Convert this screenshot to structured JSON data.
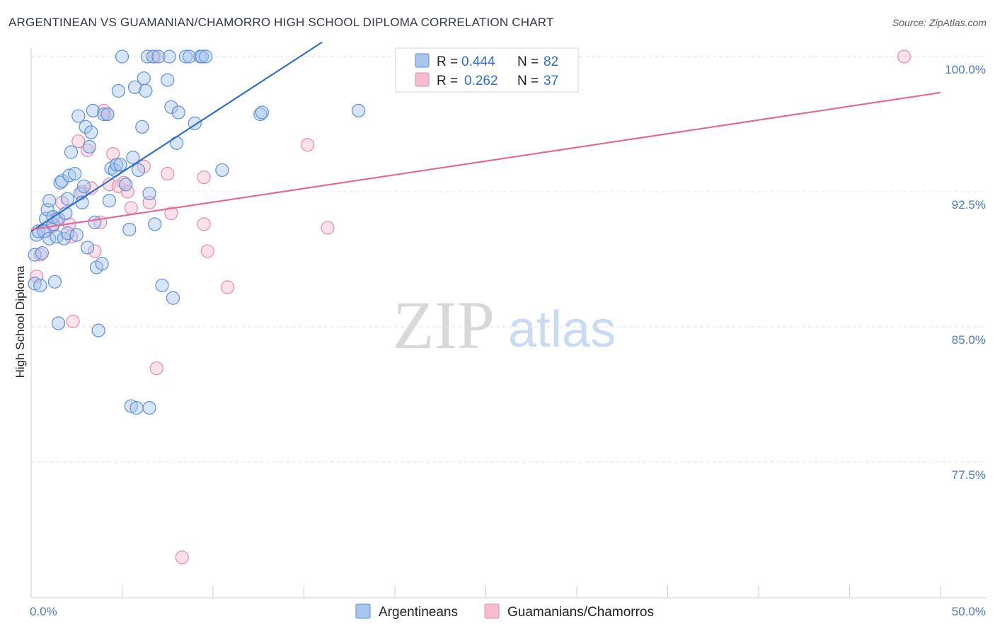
{
  "title": "ARGENTINEAN VS GUAMANIAN/CHAMORRO HIGH SCHOOL DIPLOMA CORRELATION CHART",
  "source": "Source: ZipAtlas.com",
  "watermark": {
    "zip": "ZIP",
    "atlas": "atlas"
  },
  "colors": {
    "blue_fill": "#a9c6ef",
    "blue_stroke": "#5b8fd6",
    "blue_line": "#2f6fcc",
    "pink_fill": "#f6bcd0",
    "pink_stroke": "#e58aaa",
    "pink_line": "#e06a96",
    "tick_text": "#4a78c8",
    "grid": "#dde0e5"
  },
  "stats_legend": {
    "rows": [
      {
        "r_label": "R =",
        "r_value": "0.444",
        "n_label": "N =",
        "n_value": "82"
      },
      {
        "r_label": "R =",
        "r_value": "0.262",
        "n_label": "N =",
        "n_value": "37"
      }
    ]
  },
  "chart_data": {
    "type": "scatter",
    "title": "ARGENTINEAN VS GUAMANIAN/CHAMORRO HIGH SCHOOL DIPLOMA CORRELATION CHART",
    "xlabel": "",
    "ylabel": "High School Diploma",
    "xlim": [
      0,
      50
    ],
    "ylim": [
      70.8,
      101.0
    ],
    "x_tick_labels": [
      "0.0%",
      "50.0%"
    ],
    "y_ticks": [
      100.0,
      92.5,
      85.0,
      77.5
    ],
    "y_tick_labels": [
      "100.0%",
      "92.5%",
      "85.0%",
      "77.5%"
    ],
    "grid": true,
    "legend_position": "bottom",
    "series": [
      {
        "name": "Argentineans",
        "color": "#a9c6ef",
        "trend": {
          "x": [
            0.0,
            16.0
          ],
          "y": [
            90.3,
            100.8
          ]
        },
        "points": [
          [
            0.2,
            87.4
          ],
          [
            0.2,
            89.0
          ],
          [
            0.3,
            90.1
          ],
          [
            0.4,
            90.3
          ],
          [
            0.5,
            87.3
          ],
          [
            0.6,
            89.1
          ],
          [
            0.7,
            90.3
          ],
          [
            0.8,
            91.0
          ],
          [
            0.9,
            91.5
          ],
          [
            1.0,
            89.9
          ],
          [
            1.0,
            92.0
          ],
          [
            1.2,
            90.7
          ],
          [
            1.2,
            91.1
          ],
          [
            1.3,
            87.5
          ],
          [
            1.4,
            90.0
          ],
          [
            1.5,
            91.0
          ],
          [
            1.5,
            85.2
          ],
          [
            1.6,
            93.0
          ],
          [
            1.7,
            93.1
          ],
          [
            1.8,
            89.9
          ],
          [
            1.9,
            91.3
          ],
          [
            2.0,
            90.2
          ],
          [
            2.0,
            92.1
          ],
          [
            2.1,
            93.4
          ],
          [
            2.2,
            94.7
          ],
          [
            2.4,
            93.5
          ],
          [
            2.5,
            90.1
          ],
          [
            2.6,
            96.7
          ],
          [
            2.7,
            92.4
          ],
          [
            2.8,
            91.9
          ],
          [
            2.9,
            92.8
          ],
          [
            3.0,
            96.1
          ],
          [
            3.1,
            89.4
          ],
          [
            3.2,
            95.0
          ],
          [
            3.3,
            95.8
          ],
          [
            3.4,
            97.0
          ],
          [
            3.5,
            90.8
          ],
          [
            3.6,
            88.3
          ],
          [
            3.7,
            84.8
          ],
          [
            3.9,
            88.5
          ],
          [
            4.0,
            96.8
          ],
          [
            4.2,
            96.8
          ],
          [
            4.3,
            92.0
          ],
          [
            4.4,
            93.8
          ],
          [
            4.6,
            93.7
          ],
          [
            4.7,
            94.0
          ],
          [
            4.8,
            98.1
          ],
          [
            4.9,
            94.0
          ],
          [
            5.0,
            100.0
          ],
          [
            5.2,
            92.9
          ],
          [
            5.4,
            90.4
          ],
          [
            5.5,
            80.6
          ],
          [
            5.6,
            94.4
          ],
          [
            5.7,
            98.3
          ],
          [
            5.8,
            80.5
          ],
          [
            5.9,
            93.7
          ],
          [
            6.1,
            96.1
          ],
          [
            6.2,
            98.8
          ],
          [
            6.3,
            98.1
          ],
          [
            6.4,
            100.0
          ],
          [
            6.5,
            92.4
          ],
          [
            6.5,
            80.5
          ],
          [
            6.7,
            100.0
          ],
          [
            6.8,
            90.7
          ],
          [
            7.0,
            100.0
          ],
          [
            7.2,
            87.3
          ],
          [
            7.5,
            98.7
          ],
          [
            7.6,
            100.0
          ],
          [
            7.7,
            97.2
          ],
          [
            7.8,
            86.6
          ],
          [
            8.0,
            95.2
          ],
          [
            8.1,
            96.9
          ],
          [
            8.5,
            100.0
          ],
          [
            8.7,
            100.0
          ],
          [
            9.3,
            100.0
          ],
          [
            9.0,
            96.3
          ],
          [
            9.4,
            100.0
          ],
          [
            9.6,
            100.0
          ],
          [
            10.5,
            93.7
          ],
          [
            12.6,
            96.8
          ],
          [
            12.7,
            96.9
          ],
          [
            18.0,
            97.0
          ]
        ]
      },
      {
        "name": "Guamanians/Chamorros",
        "color": "#f6bcd0",
        "trend": {
          "x": [
            0.0,
            50.0
          ],
          "y": [
            90.4,
            98.0
          ]
        },
        "points": [
          [
            0.3,
            87.8
          ],
          [
            0.5,
            89.0
          ],
          [
            0.8,
            90.3
          ],
          [
            1.2,
            90.6
          ],
          [
            1.4,
            91.0
          ],
          [
            1.7,
            91.9
          ],
          [
            2.2,
            90.0
          ],
          [
            2.1,
            90.7
          ],
          [
            2.3,
            85.3
          ],
          [
            2.6,
            95.3
          ],
          [
            2.8,
            92.5
          ],
          [
            3.1,
            94.8
          ],
          [
            3.3,
            92.7
          ],
          [
            3.5,
            89.2
          ],
          [
            3.8,
            90.8
          ],
          [
            4.0,
            97.0
          ],
          [
            4.2,
            96.8
          ],
          [
            4.3,
            92.9
          ],
          [
            4.5,
            94.6
          ],
          [
            4.8,
            92.8
          ],
          [
            5.1,
            93.0
          ],
          [
            5.3,
            92.5
          ],
          [
            5.5,
            91.6
          ],
          [
            6.2,
            93.9
          ],
          [
            6.5,
            91.9
          ],
          [
            6.8,
            100.0
          ],
          [
            6.9,
            82.7
          ],
          [
            7.5,
            93.5
          ],
          [
            7.7,
            91.3
          ],
          [
            8.3,
            72.2
          ],
          [
            9.5,
            93.3
          ],
          [
            9.5,
            90.7
          ],
          [
            9.7,
            89.2
          ],
          [
            10.8,
            87.2
          ],
          [
            15.2,
            95.1
          ],
          [
            16.3,
            90.5
          ],
          [
            48.0,
            100.0
          ]
        ]
      }
    ]
  }
}
